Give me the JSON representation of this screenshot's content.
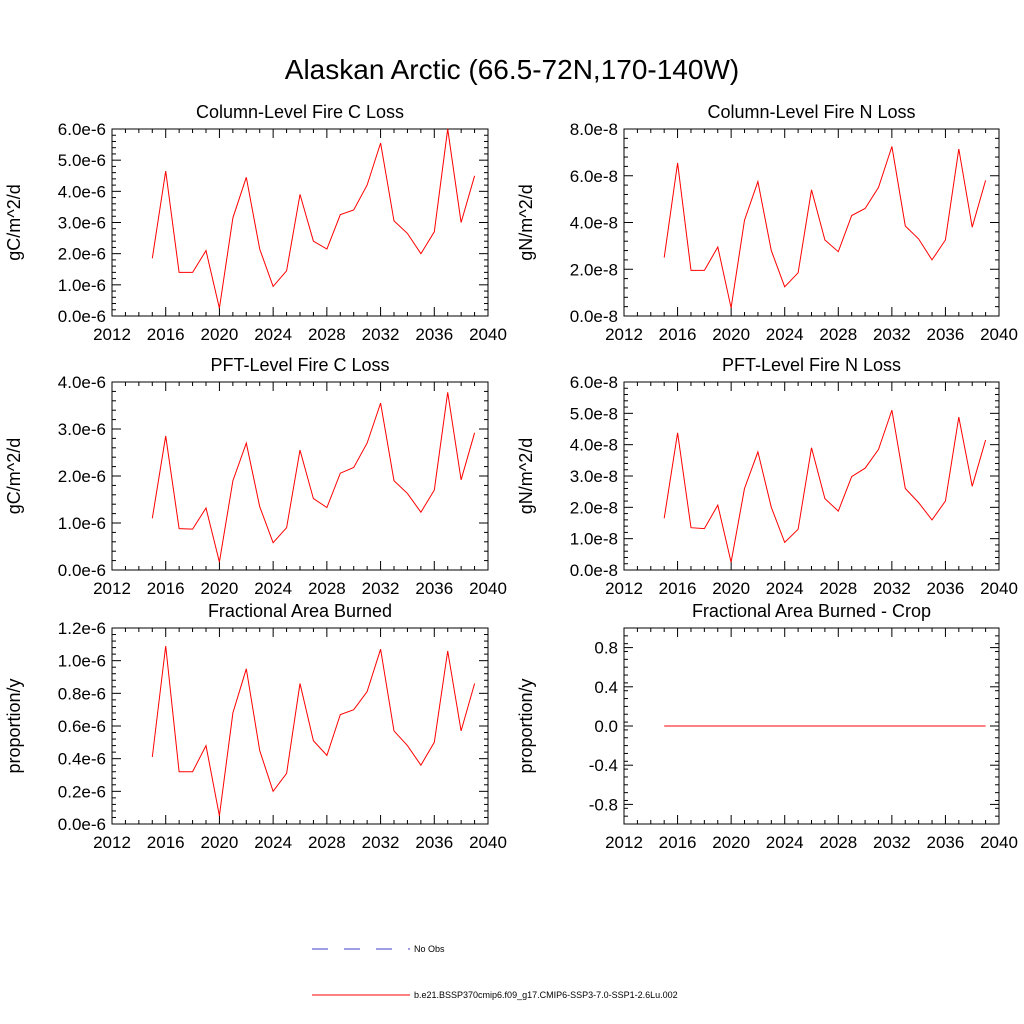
{
  "page_title": "Alaskan Arctic (66.5-72N,170-140W)",
  "series_color": "#ff0000",
  "obs_color": "#3c3cc8",
  "legend": {
    "entries": [
      {
        "label": "No Obs",
        "style": "dashed",
        "color": "#3c3cc8"
      },
      {
        "label": "b.e21.BSSP370cmip6.f09_g17.CMIP6-SSP3-7.0-SSP1-2.6Lu.002",
        "style": "solid",
        "color": "#ff0000"
      }
    ]
  },
  "chart_data": [
    {
      "type": "line",
      "title": "Column-Level Fire C Loss",
      "ylabel": "gC/m^2/d",
      "xlim": [
        2012,
        2040
      ],
      "x_ticks": [
        2012,
        2016,
        2020,
        2024,
        2028,
        2032,
        2036,
        2040
      ],
      "x_tick_labels": [
        "2012",
        "2016",
        "2020",
        "2024",
        "2028",
        "2032",
        "2036",
        "2040"
      ],
      "ylim": [
        0,
        6e-06
      ],
      "y_ticks": [
        0,
        1e-06,
        2e-06,
        3e-06,
        4e-06,
        5e-06,
        6e-06
      ],
      "y_tick_labels": [
        "0.0e-6",
        "1.0e-6",
        "2.0e-6",
        "3.0e-6",
        "4.0e-6",
        "5.0e-6",
        "6.0e-6"
      ],
      "x": [
        2015,
        2016,
        2017,
        2018,
        2019,
        2020,
        2021,
        2022,
        2023,
        2024,
        2025,
        2026,
        2027,
        2028,
        2029,
        2030,
        2031,
        2032,
        2033,
        2034,
        2035,
        2036,
        2037,
        2038,
        2039
      ],
      "series": [
        {
          "values": [
            1.85e-06,
            4.65e-06,
            1.4e-06,
            1.4e-06,
            2.1e-06,
            2.5e-07,
            3.15e-06,
            4.45e-06,
            2.15e-06,
            9.5e-07,
            1.45e-06,
            3.9e-06,
            2.4e-06,
            2.15e-06,
            3.25e-06,
            3.4e-06,
            4.2e-06,
            5.55e-06,
            3.05e-06,
            2.65e-06,
            2e-06,
            2.7e-06,
            6e-06,
            3e-06,
            4.5e-06
          ]
        }
      ]
    },
    {
      "type": "line",
      "title": "Column-Level Fire N Loss",
      "ylabel": "gN/m^2/d",
      "xlim": [
        2012,
        2040
      ],
      "x_ticks": [
        2012,
        2016,
        2020,
        2024,
        2028,
        2032,
        2036,
        2040
      ],
      "x_tick_labels": [
        "2012",
        "2016",
        "2020",
        "2024",
        "2028",
        "2032",
        "2036",
        "2040"
      ],
      "ylim": [
        0,
        8e-08
      ],
      "y_ticks": [
        0,
        2e-08,
        4e-08,
        6e-08,
        8e-08
      ],
      "y_tick_labels": [
        "0.0e-8",
        "2.0e-8",
        "4.0e-8",
        "6.0e-8",
        "8.0e-8"
      ],
      "x": [
        2015,
        2016,
        2017,
        2018,
        2019,
        2020,
        2021,
        2022,
        2023,
        2024,
        2025,
        2026,
        2027,
        2028,
        2029,
        2030,
        2031,
        2032,
        2033,
        2034,
        2035,
        2036,
        2037,
        2038,
        2039
      ],
      "series": [
        {
          "values": [
            2.5e-08,
            6.55e-08,
            1.95e-08,
            1.95e-08,
            2.95e-08,
            3.5e-09,
            4.1e-08,
            5.75e-08,
            2.8e-08,
            1.25e-08,
            1.85e-08,
            5.4e-08,
            3.25e-08,
            2.75e-08,
            4.3e-08,
            4.6e-08,
            5.5e-08,
            7.25e-08,
            3.85e-08,
            3.3e-08,
            2.4e-08,
            3.25e-08,
            7.15e-08,
            3.8e-08,
            5.8e-08
          ]
        }
      ]
    },
    {
      "type": "line",
      "title": "PFT-Level Fire C Loss",
      "ylabel": "gC/m^2/d",
      "xlim": [
        2012,
        2040
      ],
      "x_ticks": [
        2012,
        2016,
        2020,
        2024,
        2028,
        2032,
        2036,
        2040
      ],
      "x_tick_labels": [
        "2012",
        "2016",
        "2020",
        "2024",
        "2028",
        "2032",
        "2036",
        "2040"
      ],
      "ylim": [
        0,
        4e-06
      ],
      "y_ticks": [
        0,
        1e-06,
        2e-06,
        3e-06,
        4e-06
      ],
      "y_tick_labels": [
        "0.0e-6",
        "1.0e-6",
        "2.0e-6",
        "3.0e-6",
        "4.0e-6"
      ],
      "x": [
        2015,
        2016,
        2017,
        2018,
        2019,
        2020,
        2021,
        2022,
        2023,
        2024,
        2025,
        2026,
        2027,
        2028,
        2029,
        2030,
        2031,
        2032,
        2033,
        2034,
        2035,
        2036,
        2037,
        2038,
        2039
      ],
      "series": [
        {
          "values": [
            1.1e-06,
            2.85e-06,
            8.8e-07,
            8.7e-07,
            1.32e-06,
            1.7e-07,
            1.9e-06,
            2.7e-06,
            1.35e-06,
            5.8e-07,
            9e-07,
            2.55e-06,
            1.52e-06,
            1.33e-06,
            2.06e-06,
            2.18e-06,
            2.7e-06,
            3.55e-06,
            1.9e-06,
            1.63e-06,
            1.23e-06,
            1.7e-06,
            3.78e-06,
            1.92e-06,
            2.92e-06
          ]
        }
      ]
    },
    {
      "type": "line",
      "title": "PFT-Level Fire N Loss",
      "ylabel": "gN/m^2/d",
      "xlim": [
        2012,
        2040
      ],
      "x_ticks": [
        2012,
        2016,
        2020,
        2024,
        2028,
        2032,
        2036,
        2040
      ],
      "x_tick_labels": [
        "2012",
        "2016",
        "2020",
        "2024",
        "2028",
        "2032",
        "2036",
        "2040"
      ],
      "ylim": [
        0,
        6e-08
      ],
      "y_ticks": [
        0,
        1e-08,
        2e-08,
        3e-08,
        4e-08,
        5e-08,
        6e-08
      ],
      "y_tick_labels": [
        "0.0e-8",
        "1.0e-8",
        "2.0e-8",
        "3.0e-8",
        "4.0e-8",
        "5.0e-8",
        "6.0e-8"
      ],
      "x": [
        2015,
        2016,
        2017,
        2018,
        2019,
        2020,
        2021,
        2022,
        2023,
        2024,
        2025,
        2026,
        2027,
        2028,
        2029,
        2030,
        2031,
        2032,
        2033,
        2034,
        2035,
        2036,
        2037,
        2038,
        2039
      ],
      "series": [
        {
          "values": [
            1.65e-08,
            4.38e-08,
            1.35e-08,
            1.32e-08,
            2.07e-08,
            2.5e-09,
            2.6e-08,
            3.77e-08,
            2e-08,
            8.8e-09,
            1.3e-08,
            3.9e-08,
            2.28e-08,
            1.88e-08,
            2.98e-08,
            3.25e-08,
            3.85e-08,
            5.1e-08,
            2.6e-08,
            2.15e-08,
            1.6e-08,
            2.2e-08,
            4.88e-08,
            2.67e-08,
            4.15e-08
          ]
        }
      ]
    },
    {
      "type": "line",
      "title": "Fractional Area Burned",
      "ylabel": "proportion/y",
      "xlim": [
        2012,
        2040
      ],
      "x_ticks": [
        2012,
        2016,
        2020,
        2024,
        2028,
        2032,
        2036,
        2040
      ],
      "x_tick_labels": [
        "2012",
        "2016",
        "2020",
        "2024",
        "2028",
        "2032",
        "2036",
        "2040"
      ],
      "ylim": [
        0,
        1.2e-06
      ],
      "y_ticks": [
        0,
        2e-07,
        4e-07,
        6e-07,
        8e-07,
        1e-06,
        1.2e-06
      ],
      "y_tick_labels": [
        "0.0e-6",
        "0.2e-6",
        "0.4e-6",
        "0.6e-6",
        "0.8e-6",
        "1.0e-6",
        "1.2e-6"
      ],
      "x": [
        2015,
        2016,
        2017,
        2018,
        2019,
        2020,
        2021,
        2022,
        2023,
        2024,
        2025,
        2026,
        2027,
        2028,
        2029,
        2030,
        2031,
        2032,
        2033,
        2034,
        2035,
        2036,
        2037,
        2038,
        2039
      ],
      "series": [
        {
          "values": [
            4.1e-07,
            1.09e-06,
            3.2e-07,
            3.2e-07,
            4.8e-07,
            5e-08,
            6.8e-07,
            9.5e-07,
            4.5e-07,
            2e-07,
            3.1e-07,
            8.6e-07,
            5.1e-07,
            4.2e-07,
            6.7e-07,
            7e-07,
            8.1e-07,
            1.07e-06,
            5.7e-07,
            4.8e-07,
            3.6e-07,
            5e-07,
            1.06e-06,
            5.7e-07,
            8.6e-07
          ]
        }
      ]
    },
    {
      "type": "line",
      "title": "Fractional Area Burned - Crop",
      "ylabel": "proportion/y",
      "xlim": [
        2012,
        2040
      ],
      "x_ticks": [
        2012,
        2016,
        2020,
        2024,
        2028,
        2032,
        2036,
        2040
      ],
      "x_tick_labels": [
        "2012",
        "2016",
        "2020",
        "2024",
        "2028",
        "2032",
        "2036",
        "2040"
      ],
      "ylim": [
        -1.0,
        1.0
      ],
      "y_ticks": [
        -0.8,
        -0.4,
        0.0,
        0.4,
        0.8
      ],
      "y_tick_labels": [
        "-0.8",
        "-0.4",
        "0.0",
        "0.4",
        "0.8"
      ],
      "x": [
        2015,
        2016,
        2017,
        2018,
        2019,
        2020,
        2021,
        2022,
        2023,
        2024,
        2025,
        2026,
        2027,
        2028,
        2029,
        2030,
        2031,
        2032,
        2033,
        2034,
        2035,
        2036,
        2037,
        2038,
        2039
      ],
      "series": [
        {
          "values": [
            0,
            0,
            0,
            0,
            0,
            0,
            0,
            0,
            0,
            0,
            0,
            0,
            0,
            0,
            0,
            0,
            0,
            0,
            0,
            0,
            0,
            0,
            0,
            0,
            0
          ]
        }
      ]
    }
  ]
}
